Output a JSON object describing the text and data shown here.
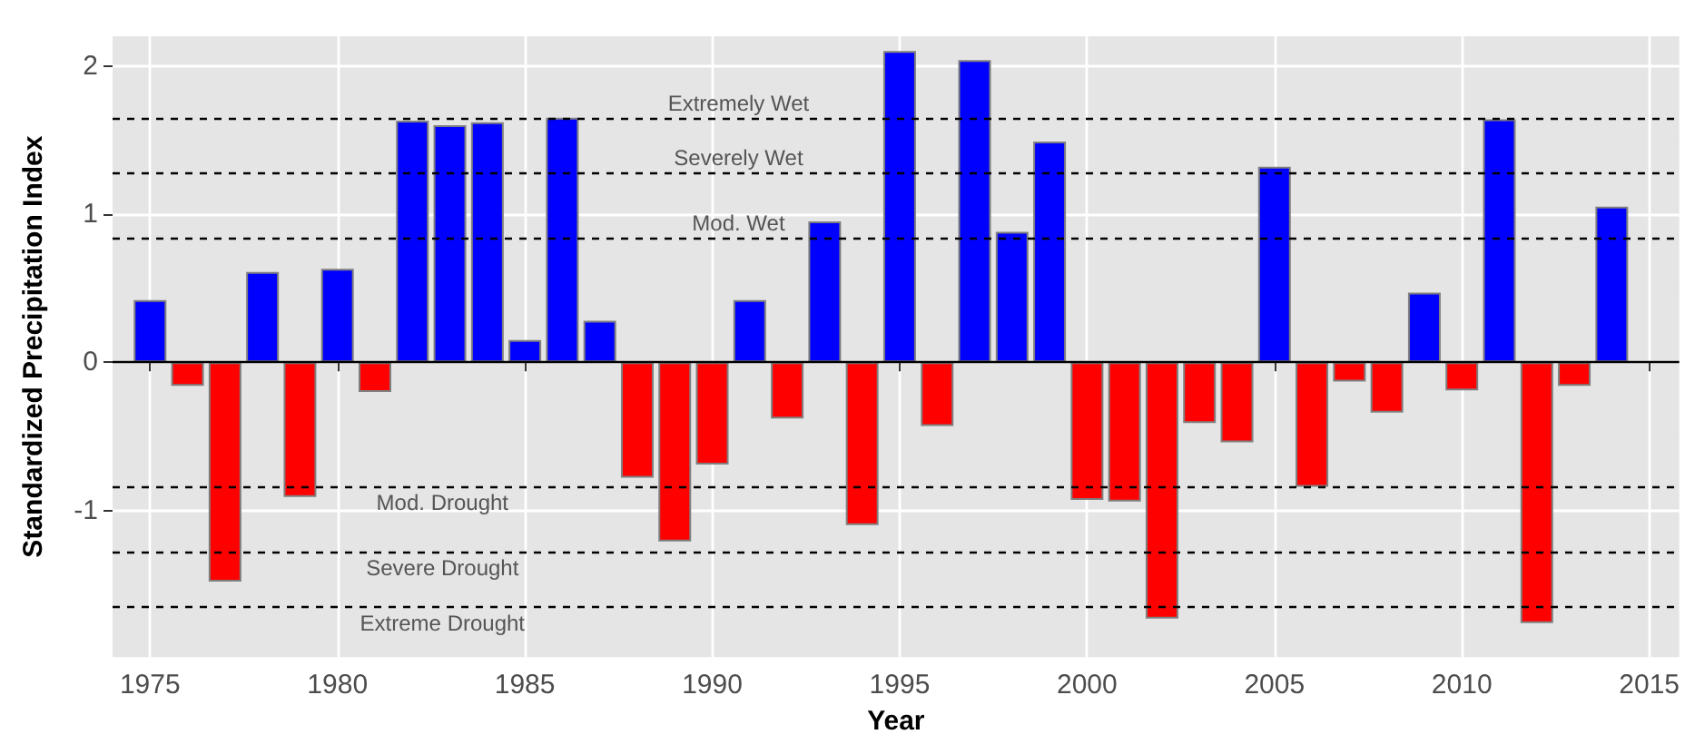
{
  "chart_data": {
    "type": "bar",
    "xlabel": "Year",
    "ylabel": "Standardized Precipitation Index",
    "x": [
      1975,
      1976,
      1977,
      1978,
      1979,
      1980,
      1981,
      1982,
      1983,
      1984,
      1985,
      1986,
      1987,
      1988,
      1989,
      1990,
      1991,
      1992,
      1993,
      1994,
      1995,
      1996,
      1997,
      1998,
      1999,
      2000,
      2001,
      2002,
      2003,
      2004,
      2005,
      2006,
      2007,
      2008,
      2009,
      2010,
      2011,
      2012,
      2013,
      2014
    ],
    "values": [
      0.42,
      -0.16,
      -1.48,
      0.61,
      -0.91,
      0.63,
      -0.2,
      1.63,
      1.6,
      1.62,
      0.15,
      1.65,
      0.28,
      -0.78,
      -1.21,
      -0.69,
      0.42,
      -0.38,
      0.95,
      -1.1,
      2.1,
      -0.43,
      2.04,
      0.88,
      1.49,
      -0.93,
      -0.94,
      -1.73,
      -0.41,
      -0.54,
      1.32,
      -0.84,
      -0.13,
      -0.34,
      0.47,
      -0.19,
      1.64,
      -1.76,
      -0.16,
      1.05
    ],
    "colors": [
      "#0000ff",
      "#ff0000",
      "#ff0000",
      "#0000ff",
      "#ff0000",
      "#0000ff",
      "#ff0000",
      "#0000ff",
      "#0000ff",
      "#0000ff",
      "#0000ff",
      "#0000ff",
      "#0000ff",
      "#ff0000",
      "#ff0000",
      "#ff0000",
      "#0000ff",
      "#ff0000",
      "#0000ff",
      "#ff0000",
      "#0000ff",
      "#ff0000",
      "#0000ff",
      "#0000ff",
      "#0000ff",
      "#ff0000",
      "#ff0000",
      "#ff0000",
      "#ff0000",
      "#ff0000",
      "#0000ff",
      "#ff0000",
      "#ff0000",
      "#ff0000",
      "#0000ff",
      "#ff0000",
      "#0000ff",
      "#ff0000",
      "#ff0000",
      "#0000ff"
    ],
    "xlim": [
      1974,
      2015.8
    ],
    "xticks": [
      1975,
      1980,
      1985,
      1990,
      1995,
      2000,
      2005,
      2010,
      2015
    ],
    "ylim": [
      -1.99,
      2.2
    ],
    "yticks": [
      -1,
      0,
      1,
      2
    ],
    "ref_lines": [
      {
        "axis": "y",
        "value": 0,
        "color": "#000000",
        "line_style": "solid"
      },
      {
        "axis": "y",
        "value": 1.65,
        "label": "Extremely Wet",
        "color": "#000000",
        "line_style": "dashed"
      },
      {
        "axis": "y",
        "value": 1.28,
        "label": "Severely Wet",
        "color": "#000000",
        "line_style": "dashed"
      },
      {
        "axis": "y",
        "value": 0.84,
        "label": "Mod. Wet",
        "color": "#000000",
        "line_style": "dashed"
      },
      {
        "axis": "y",
        "value": -0.84,
        "label": "Mod. Drought",
        "color": "#000000",
        "line_style": "dashed"
      },
      {
        "axis": "y",
        "value": -1.28,
        "label": "Severe Drought",
        "color": "#000000",
        "line_style": "dashed"
      },
      {
        "axis": "y",
        "value": -1.65,
        "label": "Extreme Drought",
        "color": "#000000",
        "line_style": "dashed"
      }
    ],
    "grid": true
  }
}
